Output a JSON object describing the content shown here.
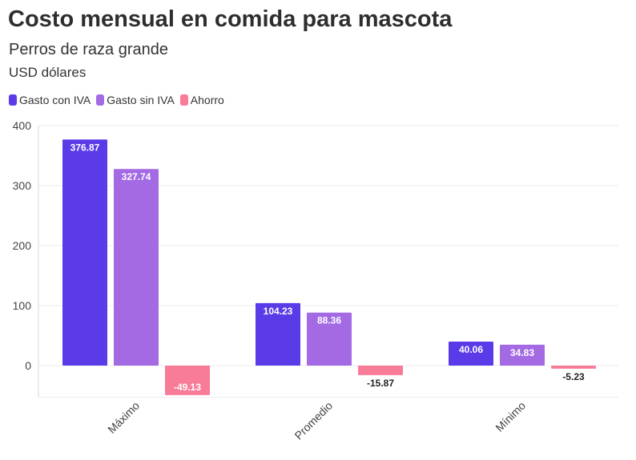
{
  "chart_data": {
    "type": "bar",
    "title": "Costo mensual en comida para mascota",
    "subtitle": "Perros de raza grande",
    "units": "USD dólares",
    "categories": [
      "Máximo",
      "Promedio",
      "Mínimo"
    ],
    "series": [
      {
        "name": "Gasto con IVA",
        "color": "#5b3be8",
        "values": [
          376.87,
          104.23,
          40.06
        ],
        "labels": [
          "376.87",
          "104.23",
          "40.06"
        ]
      },
      {
        "name": "Gasto sin IVA",
        "color": "#a36ae4",
        "values": [
          327.74,
          88.36,
          34.83
        ],
        "labels": [
          "327.74",
          "88.36",
          "34.83"
        ]
      },
      {
        "name": "Ahorro",
        "color": "#f87b98",
        "values": [
          -49.13,
          -15.87,
          -5.23
        ],
        "labels": [
          "-49.13",
          "-15.87",
          "-5.23"
        ]
      }
    ],
    "ylim": [
      -50,
      400
    ],
    "yticks": [
      0,
      100,
      200,
      300,
      400
    ],
    "grid": true,
    "legend": "top-left"
  }
}
